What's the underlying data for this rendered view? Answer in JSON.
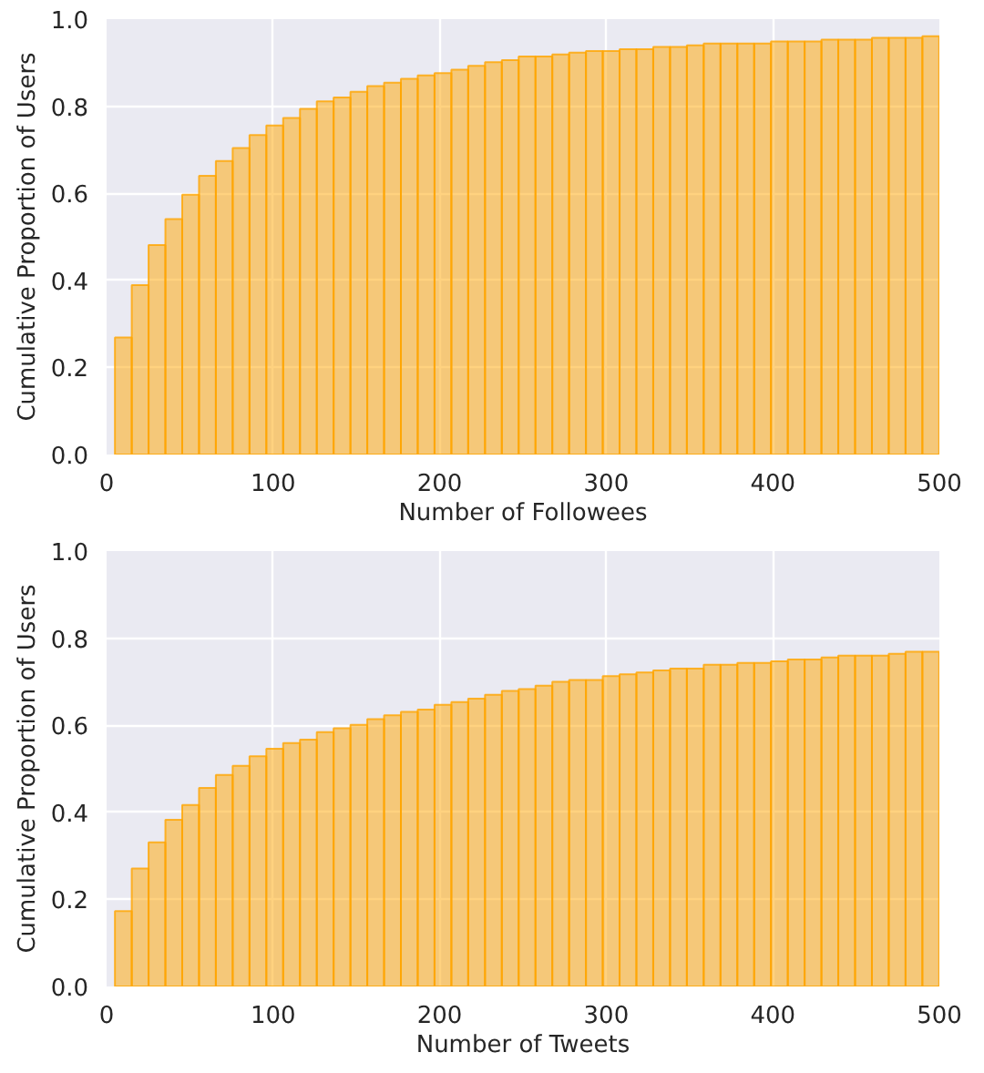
{
  "chart_data": [
    {
      "type": "histogram",
      "xlabel": "Number of Followees",
      "ylabel": "Cumulative Proportion of Users",
      "color": "#ffa500",
      "grid": true,
      "bins": [
        5,
        15.1,
        25.2,
        35.3,
        45.4,
        55.5,
        65.6,
        75.7,
        85.8,
        95.9,
        106,
        116.1,
        126.2,
        136.3,
        146.4,
        156.5,
        166.6,
        176.7,
        186.8,
        196.9,
        207,
        217.1,
        227.2,
        237.3,
        247.4,
        257.5,
        267.6,
        277.7,
        287.8,
        297.9,
        308,
        318.1,
        328.2,
        338.3,
        348.4,
        358.5,
        368.6,
        378.7,
        388.8,
        398.9,
        409,
        419.1,
        429.2,
        439.3,
        449.4,
        459.5,
        469.6,
        479.7,
        489.8,
        499.9
      ],
      "values": [
        0.269,
        0.389,
        0.481,
        0.541,
        0.597,
        0.64,
        0.674,
        0.704,
        0.734,
        0.756,
        0.773,
        0.794,
        0.811,
        0.82,
        0.833,
        0.846,
        0.854,
        0.863,
        0.871,
        0.876,
        0.884,
        0.893,
        0.901,
        0.906,
        0.914,
        0.914,
        0.919,
        0.923,
        0.927,
        0.927,
        0.931,
        0.931,
        0.936,
        0.936,
        0.94,
        0.944,
        0.944,
        0.944,
        0.944,
        0.949,
        0.949,
        0.949,
        0.953,
        0.953,
        0.953,
        0.957,
        0.957,
        0.957,
        0.961
      ],
      "xlim": [
        0,
        500
      ],
      "xticks": [
        0,
        100,
        200,
        300,
        400,
        500
      ],
      "ylim": [
        0,
        1
      ],
      "yticks": [
        {
          "value": 0,
          "label": "0.0"
        },
        {
          "value": 0.2,
          "label": "0.2"
        },
        {
          "value": 0.4,
          "label": "0.4"
        },
        {
          "value": 0.6,
          "label": "0.6"
        },
        {
          "value": 0.8,
          "label": "0.8"
        },
        {
          "value": 1,
          "label": "1.0"
        }
      ]
    },
    {
      "type": "histogram",
      "xlabel": "Number of Tweets",
      "ylabel": "Cumulative Proportion of Users",
      "color": "#ffa500",
      "grid": true,
      "bins": [
        5,
        15.1,
        25.2,
        35.3,
        45.4,
        55.5,
        65.6,
        75.7,
        85.8,
        95.9,
        106,
        116.1,
        126.2,
        136.3,
        146.4,
        156.5,
        166.6,
        176.7,
        186.8,
        196.9,
        207,
        217.1,
        227.2,
        237.3,
        247.4,
        257.5,
        267.6,
        277.7,
        287.8,
        297.9,
        308,
        318.1,
        328.2,
        338.3,
        348.4,
        358.5,
        368.6,
        378.7,
        388.8,
        398.9,
        409,
        419.1,
        429.2,
        439.3,
        449.4,
        459.5,
        469.6,
        479.7,
        489.8,
        499.9
      ],
      "values": [
        0.173,
        0.271,
        0.331,
        0.383,
        0.417,
        0.456,
        0.486,
        0.507,
        0.529,
        0.546,
        0.559,
        0.567,
        0.584,
        0.593,
        0.601,
        0.614,
        0.623,
        0.631,
        0.636,
        0.647,
        0.653,
        0.661,
        0.67,
        0.679,
        0.683,
        0.691,
        0.7,
        0.704,
        0.704,
        0.713,
        0.717,
        0.721,
        0.726,
        0.73,
        0.73,
        0.739,
        0.739,
        0.743,
        0.743,
        0.747,
        0.751,
        0.751,
        0.756,
        0.76,
        0.76,
        0.76,
        0.764,
        0.769,
        0.769
      ],
      "xlim": [
        0,
        500
      ],
      "xticks": [
        0,
        100,
        200,
        300,
        400,
        500
      ],
      "ylim": [
        0,
        1
      ],
      "yticks": [
        {
          "value": 0,
          "label": "0.0"
        },
        {
          "value": 0.2,
          "label": "0.2"
        },
        {
          "value": 0.4,
          "label": "0.4"
        },
        {
          "value": 0.6,
          "label": "0.6"
        },
        {
          "value": 0.8,
          "label": "0.8"
        },
        {
          "value": 1,
          "label": "1.0"
        }
      ]
    }
  ]
}
